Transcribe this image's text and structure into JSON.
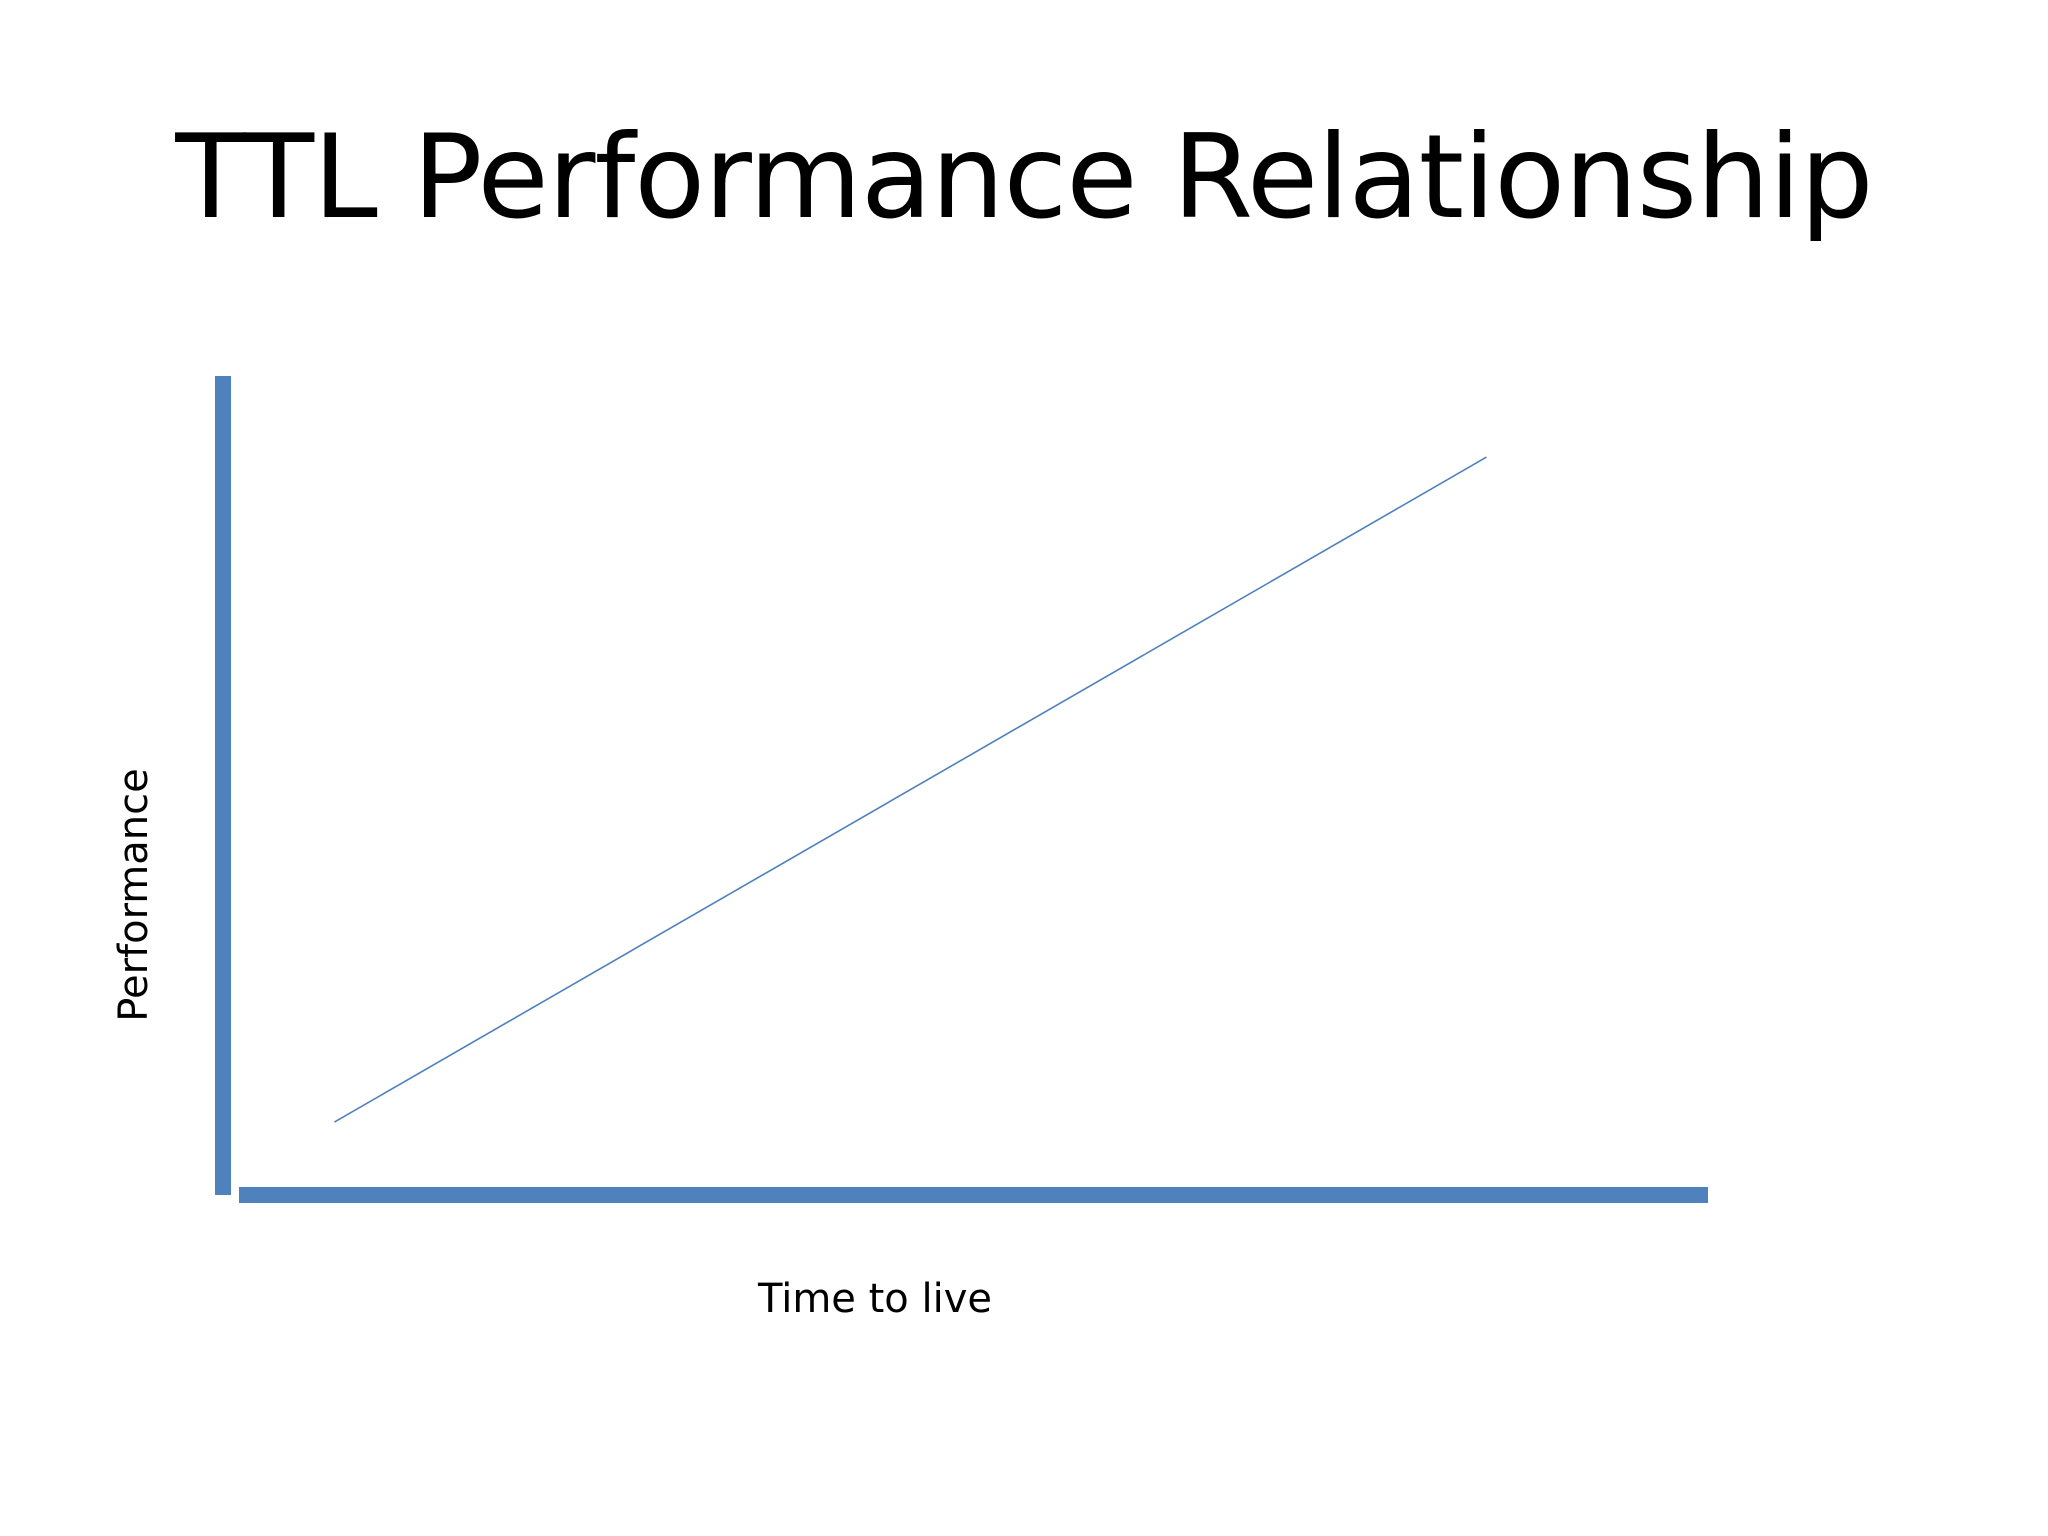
{
  "slide": {
    "title": "TTL Performance Relationship"
  },
  "chart_data": {
    "type": "line",
    "title": "TTL Performance Relationship",
    "xlabel": "Time to live",
    "ylabel": "Performance",
    "ticks": "none",
    "grid": false,
    "legend": "none",
    "axis_color": "#4F81BD",
    "line_color": "#4F81BD",
    "xlim": [
      0,
      100
    ],
    "ylim": [
      0,
      100
    ],
    "series": [
      {
        "x": [
          7,
          85
        ],
        "y": [
          8,
          90
        ]
      }
    ]
  }
}
